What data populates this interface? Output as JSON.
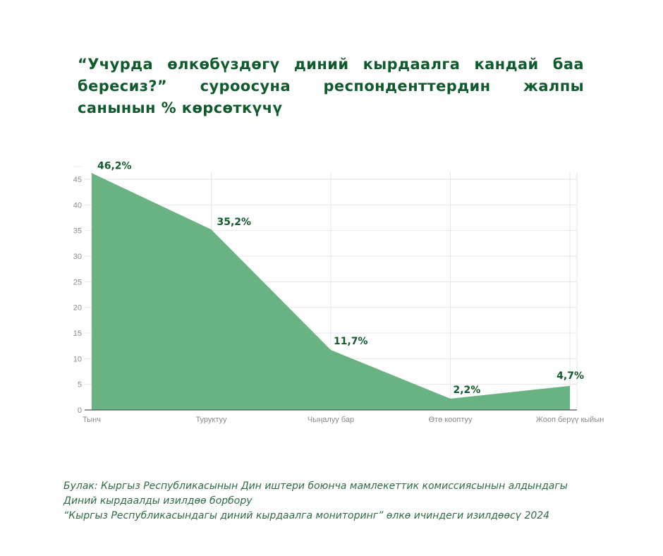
{
  "title": "“Учурда өлкөбүздөгү диний кырдаалга кандай баа бересиз?” суроосуна респонденттердин жалпы санынын % көрсөткүчү",
  "source": {
    "line1": "Булак: Кыргыз Республикасынын Дин иштери боюнча мамлекеттик комиссиясынын алдындагы",
    "line2": "Диний кырдаалды изилдөө борбору",
    "line3": "“Кыргыз Республикасындагы диний кырдаалга мониторинг”  өлкө ичиндеги изилдөөсү 2024"
  },
  "chart_data": {
    "type": "area",
    "categories": [
      "Тынч",
      "Туруктуу",
      "Чыңалуу бар",
      "Өтө кооптуу",
      "Жооп берүү кыйын"
    ],
    "values": [
      46.2,
      35.2,
      11.7,
      2.2,
      4.7
    ],
    "value_labels": [
      "46,2%",
      "35,2%",
      "11,7%",
      "2,2%",
      "4,7%"
    ],
    "ylim": [
      0,
      45
    ],
    "yticks": [
      0,
      5,
      10,
      15,
      20,
      25,
      30,
      35,
      40,
      45
    ],
    "grid": true,
    "legend": "none",
    "fill_color": "#69b383",
    "label_color": "#0f5b2c"
  }
}
